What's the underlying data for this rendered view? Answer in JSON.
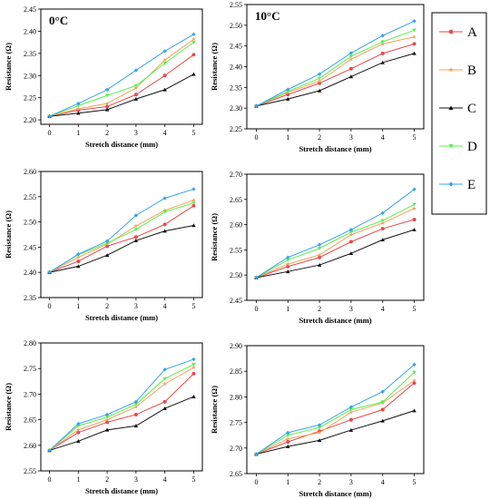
{
  "chart_data": [
    {
      "type": "line",
      "title": "0°C",
      "xlabel": "Stretch distance (mm)",
      "ylabel": "Resistance (Ω)",
      "x": [
        0,
        1,
        2,
        3,
        4,
        5
      ],
      "xlim": [
        -0.3,
        5.3
      ],
      "ylim": [
        2.19,
        2.45
      ],
      "yticks": [
        2.2,
        2.25,
        2.3,
        2.35,
        2.4,
        2.45
      ],
      "series": [
        {
          "name": "A",
          "values": [
            2.208,
            2.222,
            2.23,
            2.257,
            2.3,
            2.347
          ]
        },
        {
          "name": "B",
          "values": [
            2.208,
            2.225,
            2.237,
            2.272,
            2.335,
            2.382
          ]
        },
        {
          "name": "C",
          "values": [
            2.208,
            2.215,
            2.223,
            2.247,
            2.268,
            2.303
          ]
        },
        {
          "name": "D",
          "values": [
            2.208,
            2.232,
            2.255,
            2.277,
            2.328,
            2.375
          ]
        },
        {
          "name": "E",
          "values": [
            2.208,
            2.237,
            2.268,
            2.312,
            2.355,
            2.393
          ]
        }
      ]
    },
    {
      "type": "line",
      "title": "10°C",
      "xlabel": "Stretch distance (mm)",
      "ylabel": "Resistance (Ω)",
      "x": [
        0,
        1,
        2,
        3,
        4,
        5
      ],
      "xlim": [
        -0.3,
        5.3
      ],
      "ylim": [
        2.25,
        2.55
      ],
      "yticks": [
        2.25,
        2.3,
        2.35,
        2.4,
        2.45,
        2.5,
        2.55
      ],
      "series": [
        {
          "name": "A",
          "values": [
            2.305,
            2.333,
            2.36,
            2.395,
            2.432,
            2.455
          ]
        },
        {
          "name": "B",
          "values": [
            2.305,
            2.338,
            2.365,
            2.418,
            2.455,
            2.472
          ]
        },
        {
          "name": "C",
          "values": [
            2.305,
            2.322,
            2.342,
            2.376,
            2.41,
            2.432
          ]
        },
        {
          "name": "D",
          "values": [
            2.305,
            2.34,
            2.372,
            2.425,
            2.46,
            2.488
          ]
        },
        {
          "name": "E",
          "values": [
            2.305,
            2.345,
            2.382,
            2.433,
            2.475,
            2.51
          ]
        }
      ]
    },
    {
      "type": "line",
      "title": "",
      "xlabel": "Stretch distance (mm)",
      "ylabel": "Resistance (Ω)",
      "x": [
        0,
        1,
        2,
        3,
        4,
        5
      ],
      "xlim": [
        -0.3,
        5.3
      ],
      "ylim": [
        2.35,
        2.6
      ],
      "yticks": [
        2.35,
        2.4,
        2.45,
        2.5,
        2.55,
        2.6
      ],
      "series": [
        {
          "name": "A",
          "values": [
            2.4,
            2.422,
            2.452,
            2.47,
            2.495,
            2.532
          ]
        },
        {
          "name": "B",
          "values": [
            2.4,
            2.43,
            2.456,
            2.492,
            2.523,
            2.543
          ]
        },
        {
          "name": "C",
          "values": [
            2.4,
            2.412,
            2.434,
            2.463,
            2.482,
            2.493
          ]
        },
        {
          "name": "D",
          "values": [
            2.4,
            2.435,
            2.458,
            2.485,
            2.52,
            2.538
          ]
        },
        {
          "name": "E",
          "values": [
            2.4,
            2.436,
            2.462,
            2.513,
            2.547,
            2.565
          ]
        }
      ]
    },
    {
      "type": "line",
      "title": "",
      "xlabel": "Stretch distance (mm)",
      "ylabel": "Resistance (Ω)",
      "x": [
        0,
        1,
        2,
        3,
        4,
        5
      ],
      "xlim": [
        -0.3,
        5.3
      ],
      "ylim": [
        2.45,
        2.7
      ],
      "yticks": [
        2.45,
        2.5,
        2.55,
        2.6,
        2.65,
        2.7
      ],
      "series": [
        {
          "name": "A",
          "values": [
            2.495,
            2.517,
            2.535,
            2.566,
            2.592,
            2.61
          ]
        },
        {
          "name": "B",
          "values": [
            2.495,
            2.522,
            2.54,
            2.58,
            2.603,
            2.632
          ]
        },
        {
          "name": "C",
          "values": [
            2.495,
            2.507,
            2.52,
            2.543,
            2.57,
            2.59
          ]
        },
        {
          "name": "D",
          "values": [
            2.495,
            2.53,
            2.553,
            2.585,
            2.608,
            2.64
          ]
        },
        {
          "name": "E",
          "values": [
            2.495,
            2.535,
            2.56,
            2.59,
            2.623,
            2.67
          ]
        }
      ]
    },
    {
      "type": "line",
      "title": "",
      "xlabel": "Stretch distance (mm)",
      "ylabel": "Resistance (Ω)",
      "x": [
        0,
        1,
        2,
        3,
        4,
        5
      ],
      "xlim": [
        -0.3,
        5.3
      ],
      "ylim": [
        2.55,
        2.8
      ],
      "yticks": [
        2.55,
        2.6,
        2.65,
        2.7,
        2.75,
        2.8
      ],
      "series": [
        {
          "name": "A",
          "values": [
            2.59,
            2.625,
            2.645,
            2.66,
            2.685,
            2.74
          ]
        },
        {
          "name": "B",
          "values": [
            2.59,
            2.63,
            2.65,
            2.675,
            2.72,
            2.752
          ]
        },
        {
          "name": "C",
          "values": [
            2.59,
            2.608,
            2.63,
            2.638,
            2.672,
            2.695
          ]
        },
        {
          "name": "D",
          "values": [
            2.59,
            2.638,
            2.655,
            2.68,
            2.73,
            2.758
          ]
        },
        {
          "name": "E",
          "values": [
            2.59,
            2.642,
            2.66,
            2.685,
            2.748,
            2.768
          ]
        }
      ]
    },
    {
      "type": "line",
      "title": "",
      "xlabel": "Stretch distance (mm)",
      "ylabel": "Resistance (Ω)",
      "x": [
        0,
        1,
        2,
        3,
        4,
        5
      ],
      "xlim": [
        -0.3,
        5.3
      ],
      "ylim": [
        2.65,
        2.9
      ],
      "yticks": [
        2.65,
        2.7,
        2.75,
        2.8,
        2.85,
        2.9
      ],
      "series": [
        {
          "name": "A",
          "values": [
            2.688,
            2.712,
            2.733,
            2.755,
            2.775,
            2.827
          ]
        },
        {
          "name": "B",
          "values": [
            2.688,
            2.718,
            2.73,
            2.77,
            2.788,
            2.832
          ]
        },
        {
          "name": "C",
          "values": [
            2.688,
            2.703,
            2.715,
            2.735,
            2.753,
            2.773
          ]
        },
        {
          "name": "D",
          "values": [
            2.688,
            2.725,
            2.74,
            2.775,
            2.79,
            2.848
          ]
        },
        {
          "name": "E",
          "values": [
            2.688,
            2.73,
            2.745,
            2.78,
            2.81,
            2.863
          ]
        }
      ]
    }
  ],
  "legend": {
    "location": "top-right",
    "items": [
      {
        "label": "A",
        "color": "#e8474b",
        "marker": "circle"
      },
      {
        "label": "B",
        "color": "#f5a15a",
        "marker": "star"
      },
      {
        "label": "C",
        "color": "#111111",
        "marker": "triangle"
      },
      {
        "label": "D",
        "color": "#5cf04e",
        "marker": "triangle-down"
      },
      {
        "label": "E",
        "color": "#3aa4e6",
        "marker": "diamond"
      }
    ]
  },
  "series_colors": {
    "A": "#e8474b",
    "B": "#f5a15a",
    "C": "#111111",
    "D": "#5cf04e",
    "E": "#3aa4e6"
  }
}
